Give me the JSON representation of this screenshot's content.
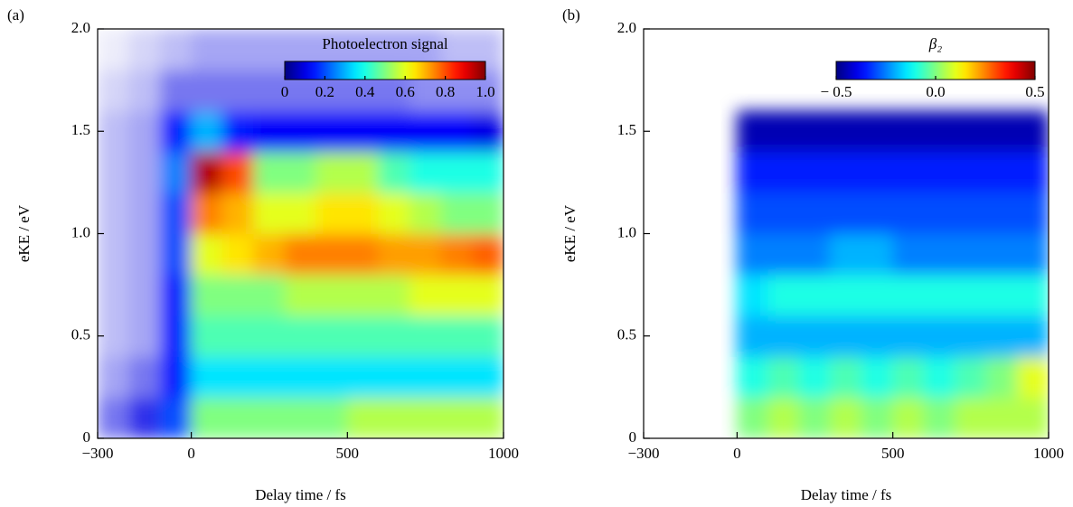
{
  "chart_data": [
    {
      "type": "heatmap",
      "panel_label": "(a)",
      "xlabel": "Delay time / fs",
      "ylabel": "eKE / eV",
      "xlim": [
        -300,
        1000
      ],
      "ylim": [
        0,
        2
      ],
      "xticks": [
        {
          "value": -300,
          "label": "−300"
        },
        0,
        500,
        1000
      ],
      "yticks": [
        0,
        0.5,
        {
          "value": 1,
          "label": "1.0"
        },
        1.5,
        {
          "value": 2,
          "label": "2.0"
        }
      ],
      "colormap": "jet",
      "x": [
        -250,
        -150,
        -50,
        50,
        150,
        250,
        350,
        450,
        550,
        650,
        750,
        850,
        950
      ],
      "y": [
        0.1,
        0.3,
        0.5,
        0.7,
        0.9,
        1.1,
        1.3,
        1.5,
        1.7,
        1.9
      ],
      "z": [
        [
          0.05,
          0.08,
          0.2,
          0.5,
          0.5,
          0.5,
          0.5,
          0.5,
          0.55,
          0.55,
          0.55,
          0.55,
          0.55
        ],
        [
          0.03,
          0.05,
          0.15,
          0.35,
          0.35,
          0.35,
          0.35,
          0.35,
          0.35,
          0.35,
          0.35,
          0.35,
          0.35
        ],
        [
          0.02,
          0.03,
          0.15,
          0.45,
          0.45,
          0.45,
          0.45,
          0.45,
          0.45,
          0.45,
          0.45,
          0.45,
          0.45
        ],
        [
          0.02,
          0.03,
          0.15,
          0.5,
          0.5,
          0.5,
          0.55,
          0.55,
          0.55,
          0.55,
          0.6,
          0.6,
          0.6
        ],
        [
          0.02,
          0.03,
          0.2,
          0.6,
          0.65,
          0.7,
          0.75,
          0.75,
          0.75,
          0.72,
          0.72,
          0.75,
          0.78
        ],
        [
          0.02,
          0.03,
          0.2,
          0.75,
          0.7,
          0.6,
          0.6,
          0.65,
          0.65,
          0.6,
          0.55,
          0.5,
          0.5
        ],
        [
          0.02,
          0.03,
          0.25,
          0.95,
          0.8,
          0.5,
          0.5,
          0.55,
          0.55,
          0.45,
          0.4,
          0.4,
          0.4
        ],
        [
          0.02,
          0.03,
          0.15,
          0.3,
          0.15,
          0.12,
          0.12,
          0.12,
          0.12,
          0.12,
          0.12,
          0.12,
          0.1
        ],
        [
          0.01,
          0.02,
          0.05,
          0.05,
          0.05,
          0.05,
          0.05,
          0.05,
          0.05,
          0.05,
          0.04,
          0.04,
          0.04
        ],
        [
          0,
          0.01,
          0.02,
          0.03,
          0.03,
          0.03,
          0.03,
          0.03,
          0.03,
          0.03,
          0.03,
          0.02,
          0.02
        ]
      ],
      "colorbar": {
        "title": "Photoelectron signal",
        "lim": [
          0,
          1
        ],
        "ticks": [
          0,
          0.2,
          0.4,
          0.6,
          0.8,
          {
            "value": 1,
            "label": "1.0"
          }
        ]
      }
    },
    {
      "type": "heatmap",
      "panel_label": "(b)",
      "xlabel": "Delay time / fs",
      "ylabel": "eKE / eV",
      "xlim": [
        -300,
        1000
      ],
      "ylim": [
        0,
        2
      ],
      "xticks": [
        {
          "value": -300,
          "label": "−300"
        },
        0,
        500,
        1000
      ],
      "yticks": [
        0,
        0.5,
        {
          "value": 1,
          "label": "1.0"
        },
        1.5,
        {
          "value": 2,
          "label": "2.0"
        }
      ],
      "colormap": "jet",
      "x": [
        50,
        150,
        250,
        350,
        450,
        550,
        650,
        750,
        850,
        950
      ],
      "y": [
        0.1,
        0.3,
        0.5,
        0.7,
        0.9,
        1.1,
        1.3,
        1.5
      ],
      "z": [
        [
          0.0,
          0.05,
          0.0,
          0.05,
          0.0,
          0.05,
          0.0,
          0.05,
          0.05,
          0.05
        ],
        [
          -0.1,
          -0.05,
          -0.1,
          -0.05,
          -0.1,
          -0.05,
          -0.1,
          -0.05,
          0.0,
          0.1
        ],
        [
          -0.2,
          -0.2,
          -0.2,
          -0.2,
          -0.2,
          -0.2,
          -0.2,
          -0.2,
          -0.2,
          -0.2
        ],
        [
          -0.15,
          -0.1,
          -0.1,
          -0.1,
          -0.1,
          -0.1,
          -0.1,
          -0.1,
          -0.1,
          -0.1
        ],
        [
          -0.25,
          -0.25,
          -0.25,
          -0.2,
          -0.2,
          -0.25,
          -0.25,
          -0.25,
          -0.25,
          -0.25
        ],
        [
          -0.3,
          -0.3,
          -0.3,
          -0.3,
          -0.3,
          -0.3,
          -0.3,
          -0.3,
          -0.3,
          -0.3
        ],
        [
          -0.35,
          -0.35,
          -0.35,
          -0.35,
          -0.35,
          -0.35,
          -0.35,
          -0.35,
          -0.35,
          -0.35
        ],
        [
          -0.45,
          -0.45,
          -0.45,
          -0.45,
          -0.45,
          -0.45,
          -0.45,
          -0.45,
          -0.45,
          -0.45
        ]
      ],
      "colorbar": {
        "title": "β₂",
        "lim": [
          -0.5,
          0.5
        ],
        "ticks": [
          {
            "value": -0.5,
            "label": "− 0.5"
          },
          {
            "value": 0,
            "label": "0.0"
          },
          0.5
        ]
      }
    }
  ]
}
